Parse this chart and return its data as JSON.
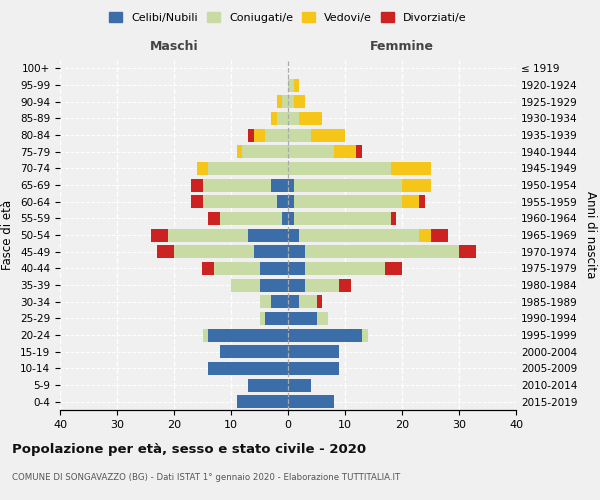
{
  "age_groups": [
    "0-4",
    "5-9",
    "10-14",
    "15-19",
    "20-24",
    "25-29",
    "30-34",
    "35-39",
    "40-44",
    "45-49",
    "50-54",
    "55-59",
    "60-64",
    "65-69",
    "70-74",
    "75-79",
    "80-84",
    "85-89",
    "90-94",
    "95-99",
    "100+"
  ],
  "birth_years": [
    "2015-2019",
    "2010-2014",
    "2005-2009",
    "2000-2004",
    "1995-1999",
    "1990-1994",
    "1985-1989",
    "1980-1984",
    "1975-1979",
    "1970-1974",
    "1965-1969",
    "1960-1964",
    "1955-1959",
    "1950-1954",
    "1945-1949",
    "1940-1944",
    "1935-1939",
    "1930-1934",
    "1925-1929",
    "1920-1924",
    "≤ 1919"
  ],
  "males": {
    "celibe": [
      9,
      7,
      14,
      12,
      14,
      4,
      3,
      5,
      5,
      6,
      7,
      1,
      2,
      3,
      0,
      0,
      0,
      0,
      0,
      0,
      0
    ],
    "coniugato": [
      0,
      0,
      0,
      0,
      1,
      1,
      2,
      5,
      8,
      14,
      14,
      11,
      13,
      12,
      14,
      8,
      4,
      2,
      1,
      0,
      0
    ],
    "vedovo": [
      0,
      0,
      0,
      0,
      0,
      0,
      0,
      0,
      0,
      0,
      0,
      0,
      0,
      0,
      2,
      1,
      2,
      1,
      1,
      0,
      0
    ],
    "divorziato": [
      0,
      0,
      0,
      0,
      0,
      0,
      0,
      0,
      2,
      3,
      3,
      2,
      2,
      2,
      0,
      0,
      1,
      0,
      0,
      0,
      0
    ]
  },
  "females": {
    "nubile": [
      8,
      4,
      9,
      9,
      13,
      5,
      2,
      3,
      3,
      3,
      2,
      1,
      1,
      1,
      0,
      0,
      0,
      0,
      0,
      0,
      0
    ],
    "coniugata": [
      0,
      0,
      0,
      0,
      1,
      2,
      3,
      6,
      14,
      27,
      21,
      17,
      19,
      19,
      18,
      8,
      4,
      2,
      1,
      1,
      0
    ],
    "vedova": [
      0,
      0,
      0,
      0,
      0,
      0,
      0,
      0,
      0,
      0,
      2,
      0,
      3,
      5,
      7,
      4,
      6,
      4,
      2,
      1,
      0
    ],
    "divorziata": [
      0,
      0,
      0,
      0,
      0,
      0,
      1,
      2,
      3,
      3,
      3,
      1,
      1,
      0,
      0,
      1,
      0,
      0,
      0,
      0,
      0
    ]
  },
  "colors": {
    "celibe": "#3b6ea8",
    "coniugato": "#c9dba5",
    "vedovo": "#f5c518",
    "divorziato": "#cc2222"
  },
  "xlim": 40,
  "title": "Popolazione per età, sesso e stato civile - 2020",
  "subtitle": "COMUNE DI SONGAVAZZO (BG) - Dati ISTAT 1° gennaio 2020 - Elaborazione TUTTITALIA.IT",
  "legend_labels": [
    "Celibi/Nubili",
    "Coniugati/e",
    "Vedovi/e",
    "Divorziati/e"
  ],
  "ylabel_left": "Fasce di età",
  "ylabel_right": "Anni di nascita",
  "header_maschi": "Maschi",
  "header_femmine": "Femmine",
  "background_color": "#f0f0f0",
  "plot_bg": "#f0f0f0"
}
